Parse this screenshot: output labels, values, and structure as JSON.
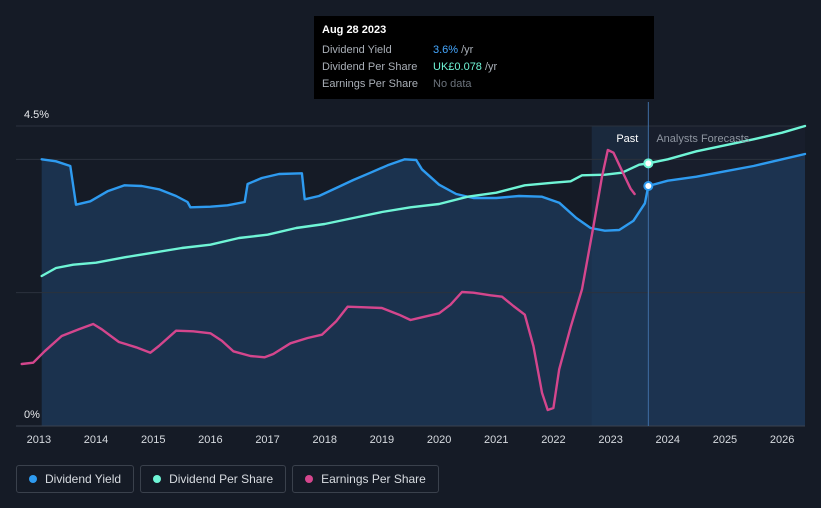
{
  "tooltip": {
    "date": "Aug 28 2023",
    "rows": [
      {
        "key": "Dividend Yield",
        "value": "3.6%",
        "unit": "/yr"
      },
      {
        "key": "Dividend Per Share",
        "value": "UK£0.078",
        "unit": "/yr"
      },
      {
        "key": "Earnings Per Share",
        "value": "No data",
        "unit": ""
      }
    ]
  },
  "regions": {
    "past": "Past",
    "forecast": "Analysts Forecasts"
  },
  "legend": [
    {
      "label": "Dividend Yield",
      "color": "#2e9bf0"
    },
    {
      "label": "Dividend Per Share",
      "color": "#6ff5d6"
    },
    {
      "label": "Earnings Per Share",
      "color": "#d4468d"
    }
  ],
  "chart_data": {
    "type": "line",
    "title": "",
    "xlabel": "",
    "ylabel": "",
    "ylim": [
      0,
      4.5
    ],
    "y_tick_labels": [
      "4.5%",
      "0%"
    ],
    "x_ticks": [
      2013,
      2014,
      2015,
      2016,
      2017,
      2018,
      2019,
      2020,
      2021,
      2022,
      2023,
      2024,
      2025,
      2026
    ],
    "xlim": [
      2012.6,
      2026.4
    ],
    "past_start": 2022.67,
    "today": 2023.66,
    "series": [
      {
        "name": "Dividend Yield",
        "color": "#2e9bf0",
        "points": [
          [
            2013.05,
            4.0
          ],
          [
            2013.3,
            3.97
          ],
          [
            2013.55,
            3.9
          ],
          [
            2013.65,
            3.32
          ],
          [
            2013.9,
            3.37
          ],
          [
            2014.2,
            3.52
          ],
          [
            2014.5,
            3.61
          ],
          [
            2014.8,
            3.6
          ],
          [
            2015.1,
            3.55
          ],
          [
            2015.4,
            3.45
          ],
          [
            2015.6,
            3.36
          ],
          [
            2015.65,
            3.28
          ],
          [
            2016.0,
            3.29
          ],
          [
            2016.3,
            3.31
          ],
          [
            2016.6,
            3.36
          ],
          [
            2016.65,
            3.63
          ],
          [
            2016.9,
            3.72
          ],
          [
            2017.2,
            3.78
          ],
          [
            2017.6,
            3.79
          ],
          [
            2017.65,
            3.4
          ],
          [
            2017.9,
            3.45
          ],
          [
            2018.2,
            3.57
          ],
          [
            2018.5,
            3.69
          ],
          [
            2018.8,
            3.8
          ],
          [
            2019.1,
            3.91
          ],
          [
            2019.4,
            4.0
          ],
          [
            2019.6,
            3.99
          ],
          [
            2019.7,
            3.85
          ],
          [
            2020.0,
            3.62
          ],
          [
            2020.3,
            3.48
          ],
          [
            2020.6,
            3.42
          ],
          [
            2021.0,
            3.42
          ],
          [
            2021.4,
            3.45
          ],
          [
            2021.8,
            3.44
          ],
          [
            2022.1,
            3.35
          ],
          [
            2022.4,
            3.12
          ],
          [
            2022.65,
            2.97
          ],
          [
            2022.9,
            2.93
          ],
          [
            2023.15,
            2.94
          ],
          [
            2023.4,
            3.08
          ],
          [
            2023.6,
            3.34
          ],
          [
            2023.66,
            3.6
          ],
          [
            2024.0,
            3.68
          ],
          [
            2024.5,
            3.74
          ],
          [
            2025.0,
            3.82
          ],
          [
            2025.5,
            3.9
          ],
          [
            2026.0,
            4.0
          ],
          [
            2026.4,
            4.08
          ]
        ]
      },
      {
        "name": "Dividend Per Share",
        "color": "#6ff5d6",
        "points": [
          [
            2013.05,
            2.25
          ],
          [
            2013.3,
            2.37
          ],
          [
            2013.6,
            2.42
          ],
          [
            2014.0,
            2.45
          ],
          [
            2014.5,
            2.53
          ],
          [
            2015.0,
            2.6
          ],
          [
            2015.5,
            2.67
          ],
          [
            2016.0,
            2.72
          ],
          [
            2016.5,
            2.82
          ],
          [
            2017.0,
            2.87
          ],
          [
            2017.5,
            2.97
          ],
          [
            2018.0,
            3.03
          ],
          [
            2018.5,
            3.12
          ],
          [
            2019.0,
            3.21
          ],
          [
            2019.5,
            3.28
          ],
          [
            2020.0,
            3.33
          ],
          [
            2020.5,
            3.44
          ],
          [
            2021.0,
            3.5
          ],
          [
            2021.5,
            3.61
          ],
          [
            2022.0,
            3.65
          ],
          [
            2022.3,
            3.67
          ],
          [
            2022.5,
            3.76
          ],
          [
            2022.9,
            3.77
          ],
          [
            2023.2,
            3.8
          ],
          [
            2023.5,
            3.92
          ],
          [
            2023.66,
            3.94
          ],
          [
            2024.0,
            4.0
          ],
          [
            2024.5,
            4.12
          ],
          [
            2025.0,
            4.21
          ],
          [
            2025.5,
            4.3
          ],
          [
            2026.0,
            4.4
          ],
          [
            2026.4,
            4.5
          ]
        ]
      },
      {
        "name": "Earnings Per Share",
        "color": "#d4468d",
        "points": [
          [
            2012.7,
            0.93
          ],
          [
            2012.9,
            0.95
          ],
          [
            2013.1,
            1.12
          ],
          [
            2013.4,
            1.35
          ],
          [
            2013.7,
            1.45
          ],
          [
            2013.95,
            1.53
          ],
          [
            2014.1,
            1.45
          ],
          [
            2014.4,
            1.26
          ],
          [
            2014.7,
            1.18
          ],
          [
            2014.95,
            1.1
          ],
          [
            2015.1,
            1.2
          ],
          [
            2015.4,
            1.43
          ],
          [
            2015.7,
            1.42
          ],
          [
            2016.0,
            1.39
          ],
          [
            2016.2,
            1.28
          ],
          [
            2016.4,
            1.12
          ],
          [
            2016.7,
            1.05
          ],
          [
            2016.95,
            1.03
          ],
          [
            2017.1,
            1.08
          ],
          [
            2017.4,
            1.24
          ],
          [
            2017.7,
            1.32
          ],
          [
            2017.95,
            1.37
          ],
          [
            2018.2,
            1.57
          ],
          [
            2018.4,
            1.79
          ],
          [
            2018.7,
            1.78
          ],
          [
            2019.0,
            1.77
          ],
          [
            2019.3,
            1.67
          ],
          [
            2019.5,
            1.59
          ],
          [
            2019.7,
            1.63
          ],
          [
            2020.0,
            1.69
          ],
          [
            2020.2,
            1.82
          ],
          [
            2020.4,
            2.01
          ],
          [
            2020.6,
            2.0
          ],
          [
            2020.9,
            1.96
          ],
          [
            2021.1,
            1.94
          ],
          [
            2021.3,
            1.8
          ],
          [
            2021.5,
            1.67
          ],
          [
            2021.65,
            1.2
          ],
          [
            2021.8,
            0.5
          ],
          [
            2021.9,
            0.24
          ],
          [
            2022.0,
            0.27
          ],
          [
            2022.1,
            0.85
          ],
          [
            2022.3,
            1.48
          ],
          [
            2022.5,
            2.05
          ],
          [
            2022.7,
            3.0
          ],
          [
            2022.85,
            3.74
          ],
          [
            2022.95,
            4.14
          ],
          [
            2023.05,
            4.1
          ],
          [
            2023.2,
            3.83
          ],
          [
            2023.35,
            3.56
          ],
          [
            2023.42,
            3.48
          ]
        ]
      }
    ]
  }
}
